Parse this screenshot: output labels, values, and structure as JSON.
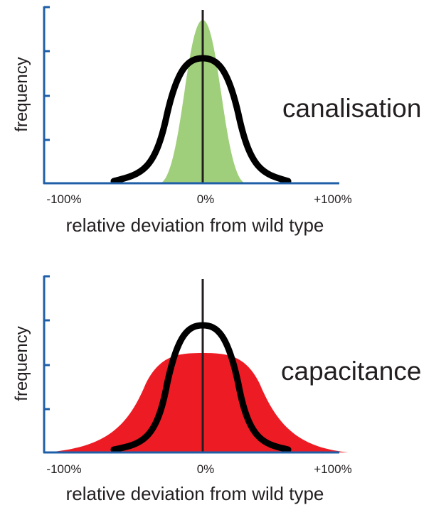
{
  "panels": [
    {
      "y_label": "frequency",
      "x_ticks": [
        "-100%",
        "0%",
        "+100%"
      ],
      "x_label": "relative deviation from wild type",
      "label": "canalisation"
    },
    {
      "y_label": "frequency",
      "x_ticks": [
        "-100%",
        "0%",
        "+100%"
      ],
      "x_label": "relative deviation from wild type",
      "label": "capacitance"
    }
  ]
}
